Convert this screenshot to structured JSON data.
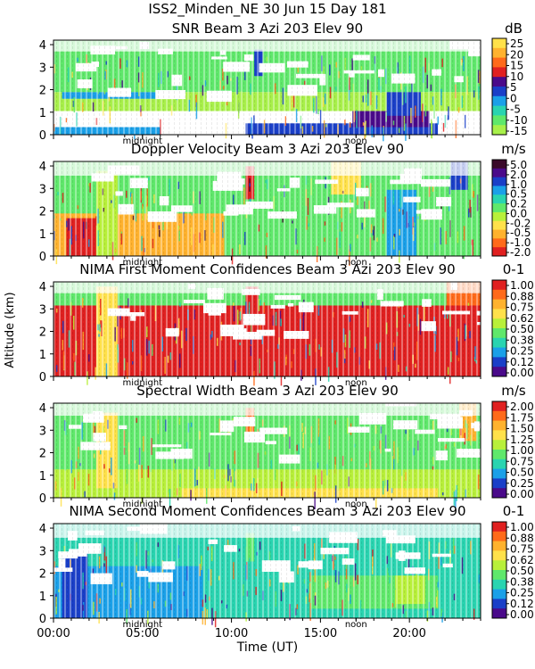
{
  "figure": {
    "title": "ISS2_Minden_NE  30 Jun 15 Day 181",
    "y_label": "Altitude (km)",
    "x_label": "Time (UT)",
    "x_ticks": [
      "00:00",
      "05:00",
      "10:00",
      "15:00",
      "20:00"
    ],
    "midnight_label": "midnight",
    "noon_label": "noon"
  },
  "chart_data": [
    {
      "type": "heatmap",
      "title": "SNR Beam 3 Azi 203 Elev 90",
      "unit": "dB",
      "ylim": [
        0,
        4.2
      ],
      "y_ticks": [
        "0",
        "1",
        "2",
        "3",
        "4"
      ],
      "xlim_hours": [
        0,
        24
      ],
      "colorbar_ticks": [
        "25",
        "20",
        "15",
        "10",
        "5",
        "0",
        "-5",
        "-10",
        "-15"
      ],
      "colorbar_colors": [
        "#FFE14A",
        "#FFB22E",
        "#FF6A1A",
        "#E02020",
        "#4A0A8A",
        "#1A3FC8",
        "#1AA0E8",
        "#29D4B0",
        "#5FE86B",
        "#A8F04A"
      ]
    },
    {
      "type": "heatmap",
      "title": "Doppler Velocity Beam 3 Azi 203 Elev 90",
      "unit": "m/s",
      "ylim": [
        0,
        4.2
      ],
      "y_ticks": [
        "0",
        "1",
        "2",
        "3",
        "4"
      ],
      "xlim_hours": [
        0,
        24
      ],
      "colorbar_ticks": [
        "5.0",
        "2.0",
        "1.0",
        "0.5",
        "0.2",
        "0.0",
        "-0.2",
        "-0.5",
        "-1.0",
        "-2.0"
      ],
      "colorbar_colors": [
        "#3A0A2A",
        "#4A0A8A",
        "#1A3FC8",
        "#1AA0E8",
        "#29D4B0",
        "#5FE86B",
        "#B8F03A",
        "#FFE14A",
        "#FFB22E",
        "#FF6A1A",
        "#E02020"
      ]
    },
    {
      "type": "heatmap",
      "title": "NIMA First Moment Confidences Beam 3 Azi 203 Elev 90",
      "unit": "0-1",
      "ylim": [
        0,
        4.2
      ],
      "y_ticks": [
        "0",
        "1",
        "2",
        "3",
        "4"
      ],
      "xlim_hours": [
        0,
        24
      ],
      "colorbar_ticks": [
        "1.00",
        "0.88",
        "0.75",
        "0.62",
        "0.50",
        "0.38",
        "0.25",
        "0.12",
        "0.00"
      ],
      "colorbar_colors": [
        "#E02020",
        "#FF6A1A",
        "#FFB22E",
        "#FFE14A",
        "#B8F03A",
        "#5FE86B",
        "#29D4B0",
        "#1AA0E8",
        "#1A3FC8",
        "#4A0A8A"
      ]
    },
    {
      "type": "heatmap",
      "title": "Spectral Width Beam 3 Azi 203 Elev 90",
      "unit": "m/s",
      "ylim": [
        0,
        4.2
      ],
      "y_ticks": [
        "0",
        "1",
        "2",
        "3",
        "4"
      ],
      "xlim_hours": [
        0,
        24
      ],
      "colorbar_ticks": [
        "2.00",
        "1.75",
        "1.50",
        "1.25",
        "1.00",
        "0.75",
        "0.50",
        "0.25",
        "0.00"
      ],
      "colorbar_colors": [
        "#E02020",
        "#FF6A1A",
        "#FFB22E",
        "#FFE14A",
        "#B8F03A",
        "#5FE86B",
        "#29D4B0",
        "#1AA0E8",
        "#1A3FC8",
        "#4A0A8A"
      ]
    },
    {
      "type": "heatmap",
      "title": "NIMA Second Moment Confidences Beam 3 Azi 203 Elev 90",
      "unit": "0-1",
      "ylim": [
        0,
        4.2
      ],
      "y_ticks": [
        "0",
        "1",
        "2",
        "3",
        "4"
      ],
      "xlim_hours": [
        0,
        24
      ],
      "colorbar_ticks": [
        "1.00",
        "0.88",
        "0.75",
        "0.62",
        "0.50",
        "0.38",
        "0.25",
        "0.12",
        "0.00"
      ],
      "colorbar_colors": [
        "#E02020",
        "#FF6A1A",
        "#FFB22E",
        "#FFE14A",
        "#B8F03A",
        "#5FE86B",
        "#29D4B0",
        "#1AA0E8",
        "#1A3FC8",
        "#4A0A8A"
      ]
    }
  ]
}
